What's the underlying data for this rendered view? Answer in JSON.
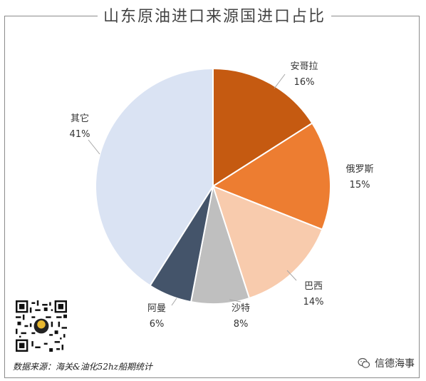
{
  "title": "山东原油进口来源国进口占比",
  "source": "数据来源：海关&油化52hz船期统计",
  "brand": "信德海事",
  "icons": {
    "qr": "qr-code-icon",
    "brand": "wechat-icon"
  },
  "chart_data": {
    "type": "pie",
    "title": "山东原油进口来源国进口占比",
    "slices": [
      {
        "label": "安哥拉",
        "value": 16,
        "value_label": "16%",
        "color": "#c55a11"
      },
      {
        "label": "俄罗斯",
        "value": 15,
        "value_label": "15%",
        "color": "#ed7d31"
      },
      {
        "label": "巴西",
        "value": 14,
        "value_label": "14%",
        "color": "#f8cbad"
      },
      {
        "label": "沙特",
        "value": 8,
        "value_label": "8%",
        "color": "#bfbfbf"
      },
      {
        "label": "阿曼",
        "value": 6,
        "value_label": "6%",
        "color": "#44546a"
      },
      {
        "label": "其它",
        "value": 41,
        "value_label": "41%",
        "color": "#dae3f3"
      }
    ],
    "start_angle": "12 o'clock",
    "direction": "clockwise",
    "legend": "none (leader-line labels)"
  }
}
